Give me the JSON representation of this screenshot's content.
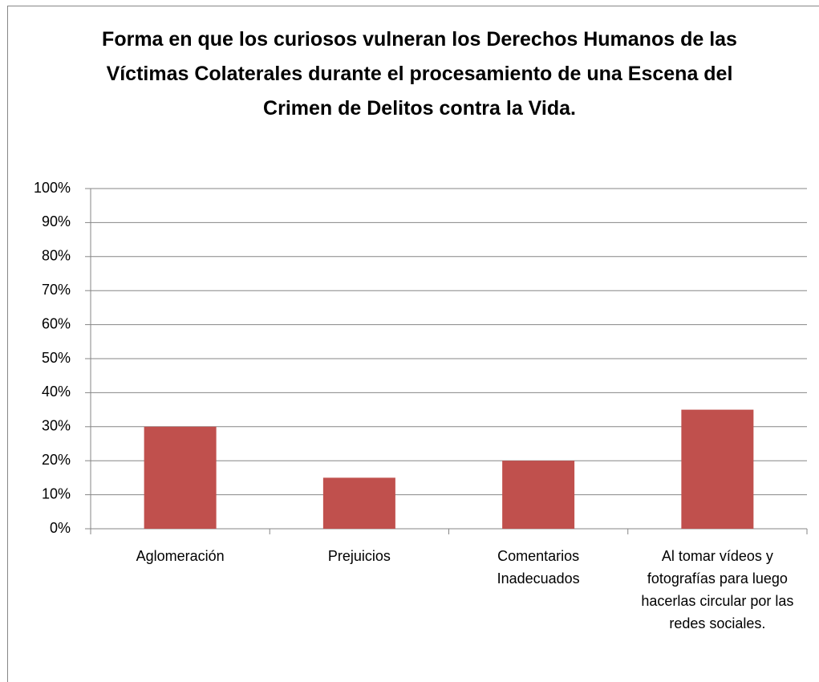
{
  "chart_data": {
    "type": "bar",
    "title": "Forma en que los curiosos vulneran los Derechos Humanos de las Víctimas Colaterales durante el procesamiento de una Escena del Crimen de Delitos contra la Vida.",
    "categories": [
      "Aglomeración",
      "Prejuicios",
      "Comentarios Inadecuados",
      "Al tomar vídeos y fotografías para luego hacerlas circular por las redes sociales."
    ],
    "values": [
      30,
      15,
      20,
      35
    ],
    "color": "#c0504d",
    "ylim": [
      0,
      100
    ],
    "yticks": [
      {
        "value": 0,
        "label": "0%"
      },
      {
        "value": 10,
        "label": "10%"
      },
      {
        "value": 20,
        "label": "20%"
      },
      {
        "value": 30,
        "label": "30%"
      },
      {
        "value": 40,
        "label": "40%"
      },
      {
        "value": 50,
        "label": "50%"
      },
      {
        "value": 60,
        "label": "60%"
      },
      {
        "value": 70,
        "label": "70%"
      },
      {
        "value": 80,
        "label": "80%"
      },
      {
        "value": 90,
        "label": "90%"
      },
      {
        "value": 100,
        "label": "100%"
      }
    ],
    "grid": true
  }
}
